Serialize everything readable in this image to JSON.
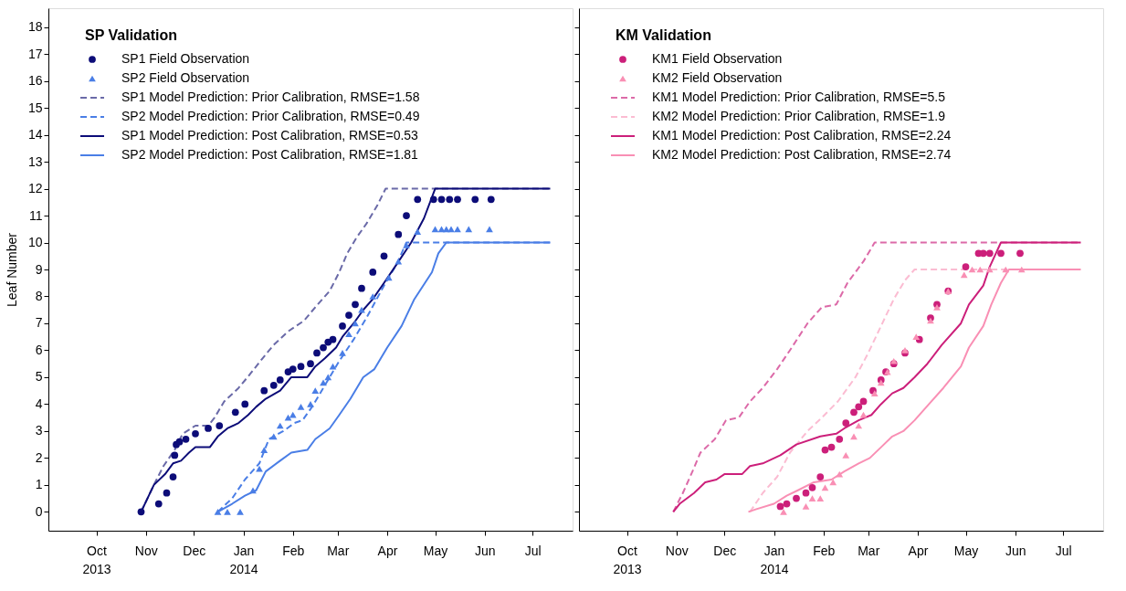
{
  "chart_data": [
    {
      "type": "line",
      "legend_title": "SP Validation",
      "ylabel": "Leaf Number",
      "legend": "top left",
      "grid": false,
      "xlim": [
        "2013-09-01",
        "2014-07-26"
      ],
      "ylim": [
        -0.7,
        18.7
      ],
      "xticks": [
        {
          "value": "2013-10-01",
          "label": "Oct\n2013"
        },
        {
          "value": "2013-11-01",
          "label": "Nov"
        },
        {
          "value": "2013-12-01",
          "label": "Dec"
        },
        {
          "value": "2014-01-01",
          "label": "Jan\n2014"
        },
        {
          "value": "2014-02-01",
          "label": "Feb"
        },
        {
          "value": "2014-03-01",
          "label": "Mar"
        },
        {
          "value": "2014-04-01",
          "label": "Apr"
        },
        {
          "value": "2014-05-01",
          "label": "May"
        },
        {
          "value": "2014-06-01",
          "label": "Jun"
        },
        {
          "value": "2014-07-01",
          "label": "Jul"
        }
      ],
      "yticks": [
        0,
        1,
        2,
        3,
        4,
        5,
        6,
        7,
        8,
        9,
        10,
        11,
        12,
        13,
        14,
        15,
        16,
        17,
        18
      ],
      "series": [
        {
          "name": "SP1 Field Observation",
          "type": "scatter",
          "marker": "circle",
          "color": "#0c0c78",
          "x": [
            "2013-10-29",
            "2013-11-09",
            "2013-11-14",
            "2013-11-18",
            "2013-11-19",
            "2013-11-20",
            "2013-11-22",
            "2013-11-26",
            "2013-12-02",
            "2013-12-10",
            "2013-12-17",
            "2013-12-27",
            "2014-01-02",
            "2014-01-14",
            "2014-01-20",
            "2014-01-24",
            "2014-01-29",
            "2014-02-01",
            "2014-02-06",
            "2014-02-12",
            "2014-02-16",
            "2014-02-20",
            "2014-02-23",
            "2014-02-26",
            "2014-03-04",
            "2014-03-08",
            "2014-03-12",
            "2014-03-16",
            "2014-03-23",
            "2014-03-30",
            "2014-04-08",
            "2014-04-13",
            "2014-04-20",
            "2014-04-30",
            "2014-05-05",
            "2014-05-10",
            "2014-05-15",
            "2014-05-26",
            "2014-06-05"
          ],
          "values": [
            0,
            0.3,
            0.7,
            1.3,
            2.1,
            2.5,
            2.6,
            2.7,
            2.9,
            3.1,
            3.2,
            3.7,
            4.0,
            4.5,
            4.7,
            4.9,
            5.2,
            5.3,
            5.4,
            5.5,
            5.9,
            6.1,
            6.3,
            6.4,
            6.9,
            7.3,
            7.7,
            8.3,
            8.9,
            9.5,
            10.3,
            11.0,
            11.6,
            11.6,
            11.6,
            11.6,
            11.6,
            11.6,
            11.6
          ]
        },
        {
          "name": "SP2 Field Observation",
          "type": "scatter",
          "marker": "triangle",
          "color": "#4a7ee6",
          "x": [
            "2013-12-16",
            "2013-12-22",
            "2013-12-30",
            "2014-01-07",
            "2014-01-11",
            "2014-01-14",
            "2014-01-20",
            "2014-01-24",
            "2014-01-29",
            "2014-02-01",
            "2014-02-06",
            "2014-02-12",
            "2014-02-15",
            "2014-02-20",
            "2014-02-23",
            "2014-02-26",
            "2014-03-04",
            "2014-03-08",
            "2014-03-12",
            "2014-03-16",
            "2014-03-23",
            "2014-04-02",
            "2014-04-08",
            "2014-04-13",
            "2014-04-20",
            "2014-05-01",
            "2014-05-05",
            "2014-05-08",
            "2014-05-11",
            "2014-05-15",
            "2014-05-22",
            "2014-06-04"
          ],
          "values": [
            0,
            0,
            0,
            0.8,
            1.6,
            2.3,
            2.8,
            3.2,
            3.5,
            3.6,
            3.9,
            4.0,
            4.5,
            4.8,
            5.0,
            5.4,
            5.9,
            6.6,
            7.0,
            7.5,
            8.0,
            8.7,
            9.3,
            9.9,
            10.4,
            10.5,
            10.5,
            10.5,
            10.5,
            10.5,
            10.5,
            10.5
          ]
        },
        {
          "name": "SP1 Model Prediction: Prior Calibration, RMSE=1.58",
          "type": "line",
          "line_style": "dashed",
          "color": "#6a6aa8",
          "x": [
            "2013-10-29",
            "2013-11-06",
            "2013-11-12",
            "2013-11-19",
            "2013-11-24",
            "2013-12-02",
            "2013-12-10",
            "2013-12-14",
            "2013-12-20",
            "2013-12-29",
            "2014-01-05",
            "2014-01-13",
            "2014-01-20",
            "2014-01-29",
            "2014-02-08",
            "2014-02-15",
            "2014-02-24",
            "2014-03-02",
            "2014-03-07",
            "2014-03-13",
            "2014-03-19",
            "2014-03-26",
            "2014-03-31",
            "2014-07-12"
          ],
          "values": [
            0,
            1.0,
            1.7,
            2.3,
            2.9,
            3.2,
            3.2,
            3.5,
            4.1,
            4.6,
            5.1,
            5.7,
            6.2,
            6.7,
            7.1,
            7.6,
            8.2,
            8.9,
            9.6,
            10.2,
            10.7,
            11.4,
            12,
            12
          ]
        },
        {
          "name": "SP2 Model Prediction: Prior Calibration, RMSE=0.49",
          "type": "line",
          "line_style": "dashed",
          "color": "#4a7ee6",
          "x": [
            "2013-12-16",
            "2013-12-25",
            "2014-01-02",
            "2014-01-11",
            "2014-01-17",
            "2014-01-26",
            "2014-02-02",
            "2014-02-07",
            "2014-02-13",
            "2014-02-21",
            "2014-03-02",
            "2014-03-11",
            "2014-03-19",
            "2014-03-30",
            "2014-04-07",
            "2014-04-13",
            "2014-07-12"
          ],
          "values": [
            0,
            0.5,
            1.2,
            1.8,
            2.7,
            3.0,
            3.3,
            3.4,
            3.9,
            4.7,
            5.6,
            6.4,
            7.2,
            8.4,
            9.2,
            10,
            10
          ]
        },
        {
          "name": "SP1 Model Prediction: Post Calibration, RMSE=0.53",
          "type": "line",
          "line_style": "solid",
          "color": "#0c0c78",
          "x": [
            "2013-10-29",
            "2013-11-02",
            "2013-11-06",
            "2013-11-13",
            "2013-11-18",
            "2013-11-23",
            "2013-11-28",
            "2013-12-02",
            "2013-12-11",
            "2013-12-16",
            "2013-12-22",
            "2013-12-29",
            "2014-01-04",
            "2014-01-09",
            "2014-01-15",
            "2014-01-24",
            "2014-01-31",
            "2014-02-10",
            "2014-02-15",
            "2014-02-21",
            "2014-02-28",
            "2014-03-04",
            "2014-03-11",
            "2014-03-17",
            "2014-03-23",
            "2014-03-30",
            "2014-04-07",
            "2014-04-16",
            "2014-04-24",
            "2014-05-01",
            "2014-07-12"
          ],
          "values": [
            0,
            0.5,
            1.0,
            1.4,
            1.8,
            1.9,
            2.2,
            2.4,
            2.4,
            2.8,
            3.1,
            3.3,
            3.6,
            3.9,
            4.2,
            4.5,
            5.0,
            5.0,
            5.4,
            5.7,
            6.1,
            6.5,
            7.0,
            7.5,
            7.9,
            8.5,
            9.2,
            10.0,
            10.9,
            12,
            12
          ]
        },
        {
          "name": "SP2 Model Prediction: Post Calibration, RMSE=1.81",
          "type": "line",
          "line_style": "solid",
          "color": "#4a7ee6",
          "x": [
            "2013-12-16",
            "2013-12-25",
            "2014-01-02",
            "2014-01-09",
            "2014-01-15",
            "2014-01-24",
            "2014-01-31",
            "2014-02-10",
            "2014-02-15",
            "2014-02-24",
            "2014-03-02",
            "2014-03-09",
            "2014-03-17",
            "2014-03-24",
            "2014-04-01",
            "2014-04-10",
            "2014-04-18",
            "2014-04-29",
            "2014-05-03",
            "2014-05-08",
            "2014-07-12"
          ],
          "values": [
            0,
            0.3,
            0.6,
            0.8,
            1.5,
            1.9,
            2.2,
            2.3,
            2.7,
            3.1,
            3.6,
            4.2,
            5.0,
            5.3,
            6.1,
            6.9,
            7.9,
            8.9,
            9.6,
            10,
            10
          ]
        }
      ]
    },
    {
      "type": "line",
      "legend_title": "KM Validation",
      "legend": "top left",
      "grid": false,
      "tick_labels": "x",
      "xlim": [
        "2013-09-01",
        "2014-07-26"
      ],
      "ylim": [
        -0.7,
        18.7
      ],
      "xticks": [
        {
          "value": "2013-10-01",
          "label": "Oct\n2013"
        },
        {
          "value": "2013-11-01",
          "label": "Nov"
        },
        {
          "value": "2013-12-01",
          "label": "Dec"
        },
        {
          "value": "2014-01-01",
          "label": "Jan\n2014"
        },
        {
          "value": "2014-02-01",
          "label": "Feb"
        },
        {
          "value": "2014-03-01",
          "label": "Mar"
        },
        {
          "value": "2014-04-01",
          "label": "Apr"
        },
        {
          "value": "2014-05-01",
          "label": "May"
        },
        {
          "value": "2014-06-01",
          "label": "Jun"
        },
        {
          "value": "2014-07-01",
          "label": "Jul"
        }
      ],
      "yticks": [
        0,
        1,
        2,
        3,
        4,
        5,
        6,
        7,
        8,
        9,
        10,
        11,
        12,
        13,
        14,
        15,
        16,
        17,
        18
      ],
      "series": [
        {
          "name": "KM1 Field Observation",
          "type": "scatter",
          "marker": "circle",
          "color": "#cc1f7a",
          "x": [
            "2014-01-05",
            "2014-01-09",
            "2014-01-15",
            "2014-01-21",
            "2014-01-25",
            "2014-01-30",
            "2014-02-02",
            "2014-02-06",
            "2014-02-11",
            "2014-02-15",
            "2014-02-20",
            "2014-02-23",
            "2014-02-26",
            "2014-03-04",
            "2014-03-09",
            "2014-03-12",
            "2014-03-17",
            "2014-03-24",
            "2014-04-02",
            "2014-04-09",
            "2014-04-13",
            "2014-04-20",
            "2014-05-01",
            "2014-05-09",
            "2014-05-12",
            "2014-05-16",
            "2014-05-23",
            "2014-06-04"
          ],
          "values": [
            0.2,
            0.3,
            0.5,
            0.7,
            0.9,
            1.3,
            2.3,
            2.4,
            2.7,
            3.3,
            3.7,
            3.9,
            4.1,
            4.5,
            4.9,
            5.2,
            5.5,
            5.9,
            6.4,
            7.2,
            7.7,
            8.2,
            9.1,
            9.6,
            9.6,
            9.6,
            9.6,
            9.6
          ]
        },
        {
          "name": "KM2 Field Observation",
          "type": "scatter",
          "marker": "triangle",
          "color": "#f98fb4",
          "x": [
            "2014-01-07",
            "2014-01-21",
            "2014-01-25",
            "2014-01-30",
            "2014-02-02",
            "2014-02-07",
            "2014-02-11",
            "2014-02-15",
            "2014-02-20",
            "2014-02-23",
            "2014-02-26",
            "2014-03-05",
            "2014-03-09",
            "2014-03-13",
            "2014-03-17",
            "2014-03-24",
            "2014-03-31",
            "2014-04-09",
            "2014-04-13",
            "2014-04-20",
            "2014-04-30",
            "2014-05-05",
            "2014-05-10",
            "2014-05-16",
            "2014-05-26",
            "2014-06-05"
          ],
          "values": [
            0,
            0.2,
            0.5,
            0.5,
            0.9,
            1.1,
            1.4,
            2.1,
            2.8,
            3.2,
            3.6,
            4.4,
            4.8,
            5.2,
            5.6,
            6.0,
            6.5,
            7.1,
            7.6,
            8.2,
            8.8,
            9,
            9,
            9,
            9,
            9
          ]
        },
        {
          "name": "KM1 Model Prediction: Prior Calibration, RMSE=5.5",
          "type": "line",
          "line_style": "dashed",
          "color": "#dc6aa8",
          "x": [
            "2013-10-30",
            "2013-11-05",
            "2013-11-11",
            "2013-11-16",
            "2013-11-25",
            "2013-12-02",
            "2013-12-10",
            "2013-12-17",
            "2013-12-25",
            "2014-01-03",
            "2014-01-11",
            "2014-01-22",
            "2014-01-31",
            "2014-02-09",
            "2014-02-16",
            "2014-02-26",
            "2014-03-05",
            "2014-07-12"
          ],
          "values": [
            0,
            0.7,
            1.5,
            2.2,
            2.7,
            3.4,
            3.5,
            4.1,
            4.6,
            5.3,
            6.0,
            7.0,
            7.6,
            7.7,
            8.5,
            9.3,
            10,
            10
          ]
        },
        {
          "name": "KM2 Model Prediction: Prior Calibration, RMSE=1.9",
          "type": "line",
          "line_style": "dashed",
          "color": "#fbbcd2",
          "x": [
            "2013-12-17",
            "2013-12-25",
            "2014-01-03",
            "2014-01-11",
            "2014-01-22",
            "2014-01-31",
            "2014-02-10",
            "2014-02-21",
            "2014-03-01",
            "2014-03-09",
            "2014-03-17",
            "2014-03-24",
            "2014-03-30",
            "2014-07-12"
          ],
          "values": [
            0,
            0.7,
            1.3,
            2.2,
            3.0,
            3.5,
            4.1,
            5.0,
            5.9,
            6.9,
            7.9,
            8.6,
            9,
            9
          ]
        },
        {
          "name": "KM1 Model Prediction: Post Calibration, RMSE=2.24",
          "type": "line",
          "line_style": "solid",
          "color": "#cc1f7a",
          "x": [
            "2013-10-30",
            "2013-11-03",
            "2013-11-12",
            "2013-11-19",
            "2013-11-26",
            "2013-12-01",
            "2013-12-12",
            "2013-12-17",
            "2013-12-25",
            "2014-01-05",
            "2014-01-15",
            "2014-01-30",
            "2014-02-09",
            "2014-02-14",
            "2014-02-23",
            "2014-03-03",
            "2014-03-09",
            "2014-03-16",
            "2014-03-23",
            "2014-03-30",
            "2014-04-07",
            "2014-04-16",
            "2014-04-28",
            "2014-05-03",
            "2014-05-12",
            "2014-05-16",
            "2014-05-23",
            "2014-07-12"
          ],
          "values": [
            0,
            0.3,
            0.7,
            1.1,
            1.2,
            1.4,
            1.4,
            1.7,
            1.8,
            2.1,
            2.5,
            2.8,
            2.9,
            3.1,
            3.4,
            3.6,
            4.0,
            4.4,
            4.6,
            5.0,
            5.5,
            6.2,
            7.0,
            7.7,
            8.4,
            9.1,
            10,
            10
          ]
        },
        {
          "name": "KM2 Model Prediction: Post Calibration, RMSE=2.74",
          "type": "line",
          "line_style": "solid",
          "color": "#f98fb4",
          "x": [
            "2013-12-16",
            "2013-12-21",
            "2014-01-01",
            "2014-01-09",
            "2014-01-16",
            "2014-01-26",
            "2014-02-06",
            "2014-02-14",
            "2014-02-23",
            "2014-03-02",
            "2014-03-09",
            "2014-03-16",
            "2014-03-23",
            "2014-03-30",
            "2014-04-08",
            "2014-04-17",
            "2014-04-28",
            "2014-05-03",
            "2014-05-12",
            "2014-05-17",
            "2014-05-23",
            "2014-05-28",
            "2014-07-12"
          ],
          "values": [
            0,
            0.1,
            0.3,
            0.6,
            0.8,
            1.1,
            1.2,
            1.5,
            1.8,
            2.0,
            2.4,
            2.8,
            3.0,
            3.4,
            4.0,
            4.6,
            5.4,
            6.1,
            6.9,
            7.7,
            8.5,
            9,
            9
          ]
        }
      ]
    }
  ]
}
